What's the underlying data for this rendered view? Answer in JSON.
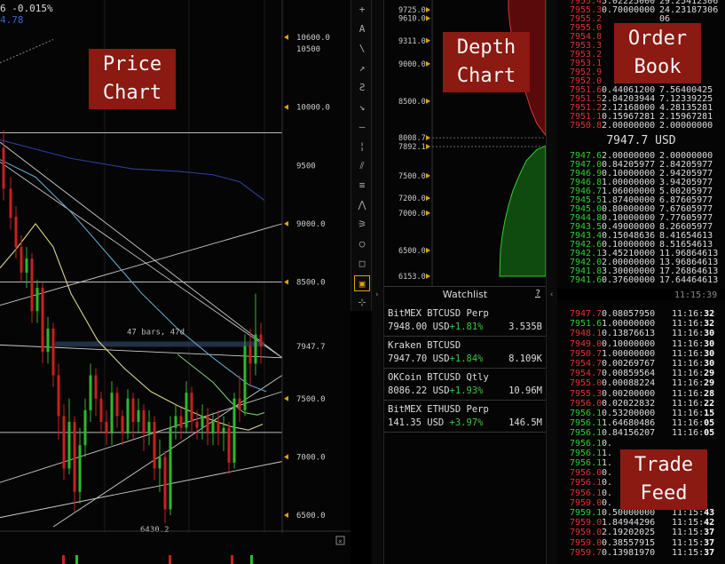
{
  "price_chart": {
    "header_change": "6  -0.015%",
    "header_value": "4.78",
    "y_axis_labels": [
      {
        "text": "10600.0",
        "y": 10600,
        "marker": true
      },
      {
        "text": "10500",
        "y": 10500,
        "marker": false
      },
      {
        "text": "10000.0",
        "y": 10000,
        "marker": true
      },
      {
        "text": "9500",
        "y": 9500,
        "marker": false
      },
      {
        "text": "9000.0",
        "y": 9000,
        "marker": true
      },
      {
        "text": "8500.0",
        "y": 8500,
        "marker": true
      },
      {
        "text": "7947.7",
        "y": 7947.7,
        "marker": false
      },
      {
        "text": "7500.0",
        "y": 7500,
        "marker": true
      },
      {
        "text": "7000.0",
        "y": 7000,
        "marker": true
      },
      {
        "text": "6500.0",
        "y": 6500,
        "marker": true
      }
    ],
    "measure_label": "47 bars, 47d",
    "low_label": "6430.2"
  },
  "toolbar": {
    "tools": [
      "plus-icon",
      "text-icon",
      "line-icon",
      "arrow-icon",
      "curve-icon",
      "arrow-down-icon",
      "hline-icon",
      "vline-icon",
      "parallel-icon",
      "channel-icon",
      "pitchfork-icon",
      "fan-icon",
      "circle-icon",
      "rectangle-icon",
      "measure-icon",
      "crosshair-icon"
    ],
    "glyphs": [
      "+",
      "A",
      "\\",
      "↗",
      "Ƨ",
      "↘",
      "—",
      "¦",
      "⫽",
      "≡",
      "⋀",
      "⚞",
      "○",
      "□",
      "▣",
      "⊹"
    ],
    "active_index": 14
  },
  "depth_chart": {
    "y_labels": [
      {
        "text": "9725.0",
        "y": 9725
      },
      {
        "text": "9610.0",
        "y": 9610
      },
      {
        "text": "9311.0",
        "y": 9311
      },
      {
        "text": "9000.0",
        "y": 9000
      },
      {
        "text": "8500.0",
        "y": 8500
      },
      {
        "text": "8008.7",
        "y": 8008.7
      },
      {
        "text": "7892.1",
        "y": 7892.1
      },
      {
        "text": "7500.0",
        "y": 7500
      },
      {
        "text": "7200.0",
        "y": 7200
      },
      {
        "text": "7000.0",
        "y": 7000
      },
      {
        "text": "6500.0",
        "y": 6500
      },
      {
        "text": "6153.0",
        "y": 6153
      }
    ]
  },
  "watchlist": {
    "title": "Watchlist",
    "help": "?",
    "items": [
      {
        "name": "BitMEX BTCUSD Perp",
        "price": "7948.00 USD",
        "change": "+1.81%",
        "volume": "3.535B"
      },
      {
        "name": "Kraken BTCUSD",
        "price": "7947.70 USD",
        "change": "+1.84%",
        "volume": "8.109K"
      },
      {
        "name": "OKCoin BTCUSD Qtly",
        "price": "8086.22 USD",
        "change": "+1.93%",
        "volume": "10.96M"
      },
      {
        "name": "BitMEX ETHUSD Perp",
        "price": "141.35 USD ",
        "change": "+3.97%",
        "volume": "146.5M"
      }
    ]
  },
  "order_book": {
    "asks": [
      {
        "price": "7955.4",
        "size": "5.02225000",
        "total": "29.25412306"
      },
      {
        "price": "7955.3",
        "size": "0.70000000",
        "total": "24.23187306"
      },
      {
        "price": "7955.2",
        "size": "",
        "total": "06"
      },
      {
        "price": "7955.0",
        "size": "",
        "total": "06"
      },
      {
        "price": "7954.8",
        "size": "",
        "total": "06"
      },
      {
        "price": "7953.3",
        "size": "",
        "total": "06"
      },
      {
        "price": "7953.2",
        "size": "",
        "total": "06"
      },
      {
        "price": "7953.1",
        "size": "",
        "total": "36"
      },
      {
        "price": "7952.9",
        "size": "",
        "total": "36"
      },
      {
        "price": "7952.0",
        "size": "",
        "total": "05"
      },
      {
        "price": "7951.6",
        "size": "0.44061200",
        "total": "7.56400425"
      },
      {
        "price": "7951.5",
        "size": "2.84203944",
        "total": "7.12339225"
      },
      {
        "price": "7951.2",
        "size": "2.12168000",
        "total": "4.28135281"
      },
      {
        "price": "7951.1",
        "size": "0.15967281",
        "total": "2.15967281"
      },
      {
        "price": "7950.8",
        "size": "2.00000000",
        "total": "2.00000000"
      }
    ],
    "mid_price": "7947.7 USD",
    "bids": [
      {
        "price": "7947.6",
        "size": "2.00000000",
        "total": "2.00000000"
      },
      {
        "price": "7947.0",
        "size": "0.84205977",
        "total": "2.84205977"
      },
      {
        "price": "7946.9",
        "size": "0.10000000",
        "total": "2.94205977"
      },
      {
        "price": "7946.8",
        "size": "1.00000000",
        "total": "3.94205977"
      },
      {
        "price": "7946.7",
        "size": "1.06000000",
        "total": "5.00205977"
      },
      {
        "price": "7945.5",
        "size": "1.87400000",
        "total": "6.87605977"
      },
      {
        "price": "7945.0",
        "size": "0.80000000",
        "total": "7.67605977"
      },
      {
        "price": "7944.8",
        "size": "0.10000000",
        "total": "7.77605977"
      },
      {
        "price": "7943.5",
        "size": "0.49000000",
        "total": "8.26605977"
      },
      {
        "price": "7943.4",
        "size": "0.15048636",
        "total": "8.41654613"
      },
      {
        "price": "7942.6",
        "size": "0.10000000",
        "total": "8.51654613"
      },
      {
        "price": "7942.1",
        "size": "3.45210000",
        "total": "11.96864613"
      },
      {
        "price": "7942.0",
        "size": "2.00000000",
        "total": "13.96864613"
      },
      {
        "price": "7941.8",
        "size": "3.30000000",
        "total": "17.26864613"
      },
      {
        "price": "7941.6",
        "size": "0.37600000",
        "total": "17.64464613"
      }
    ],
    "time": "11:15:39"
  },
  "trade_feed": {
    "trades": [
      {
        "side": "sell",
        "price": "7947.7",
        "size": "0.08057950",
        "time_a": "11:16:",
        "time_b": "32"
      },
      {
        "side": "buy",
        "price": "7951.6",
        "size": "1.00000000",
        "time_a": "11:16:",
        "time_b": "32"
      },
      {
        "side": "sell",
        "price": "7948.1",
        "size": "0.13876613",
        "time_a": "11:16:",
        "time_b": "30"
      },
      {
        "side": "sell",
        "price": "7949.0",
        "size": "0.10000000",
        "time_a": "11:16:",
        "time_b": "30"
      },
      {
        "side": "sell",
        "price": "7950.7",
        "size": "1.00000000",
        "time_a": "11:16:",
        "time_b": "30"
      },
      {
        "side": "sell",
        "price": "7954.7",
        "size": "0.00269767",
        "time_a": "11:16:",
        "time_b": "30"
      },
      {
        "side": "sell",
        "price": "7954.7",
        "size": "0.00859564",
        "time_a": "11:16:",
        "time_b": "29"
      },
      {
        "side": "sell",
        "price": "7955.0",
        "size": "0.00088224",
        "time_a": "11:16:",
        "time_b": "29"
      },
      {
        "side": "sell",
        "price": "7955.3",
        "size": "0.00200000",
        "time_a": "11:16:",
        "time_b": "28"
      },
      {
        "side": "sell",
        "price": "7956.0",
        "size": "0.02022832",
        "time_a": "11:16:",
        "time_b": "22"
      },
      {
        "side": "buy",
        "price": "7956.1",
        "size": "0.53200000",
        "time_a": "11:16:",
        "time_b": "15"
      },
      {
        "side": "buy",
        "price": "7956.1",
        "size": "1.64680486",
        "time_a": "11:16:",
        "time_b": "05"
      },
      {
        "side": "buy",
        "price": "7956.1",
        "size": "0.84156207",
        "time_a": "11:16:",
        "time_b": "05"
      },
      {
        "side": "buy",
        "price": "7956.1",
        "size": "0.",
        "time_a": "",
        "time_b": ""
      },
      {
        "side": "buy",
        "price": "7956.1",
        "size": "1.",
        "time_a": "",
        "time_b": ""
      },
      {
        "side": "buy",
        "price": "7956.1",
        "size": "1.",
        "time_a": "",
        "time_b": ""
      },
      {
        "side": "sell",
        "price": "7956.0",
        "size": "0.",
        "time_a": "",
        "time_b": ""
      },
      {
        "side": "sell",
        "price": "7956.1",
        "size": "0.",
        "time_a": "",
        "time_b": ""
      },
      {
        "side": "sell",
        "price": "7956.1",
        "size": "0.",
        "time_a": "",
        "time_b": ""
      },
      {
        "side": "sell",
        "price": "7959.0",
        "size": "0.",
        "time_a": "",
        "time_b": ""
      },
      {
        "side": "buy",
        "price": "7959.1",
        "size": "0.50000000",
        "time_a": "11:15:",
        "time_b": "43"
      },
      {
        "side": "sell",
        "price": "7959.0",
        "size": "1.84944296",
        "time_a": "11:15:",
        "time_b": "42"
      },
      {
        "side": "sell",
        "price": "7959.0",
        "size": "2.19202025",
        "time_a": "11:15:",
        "time_b": "37"
      },
      {
        "side": "sell",
        "price": "7959.0",
        "size": "0.38557915",
        "time_a": "11:15:",
        "time_b": "37"
      },
      {
        "side": "sell",
        "price": "7959.7",
        "size": "0.13981970",
        "time_a": "11:15:",
        "time_b": "37"
      }
    ]
  },
  "overlays": {
    "price_chart": [
      "Price",
      "Chart"
    ],
    "depth_chart": [
      "Depth",
      "Chart"
    ],
    "order_book": [
      "Order",
      "Book"
    ],
    "trade_feed": [
      "Trade",
      "Feed"
    ]
  },
  "colors": {
    "ask": "#d33333",
    "bid": "#33cc33",
    "overlay_bg": "#8b1a12",
    "accent": "#e0a000"
  }
}
